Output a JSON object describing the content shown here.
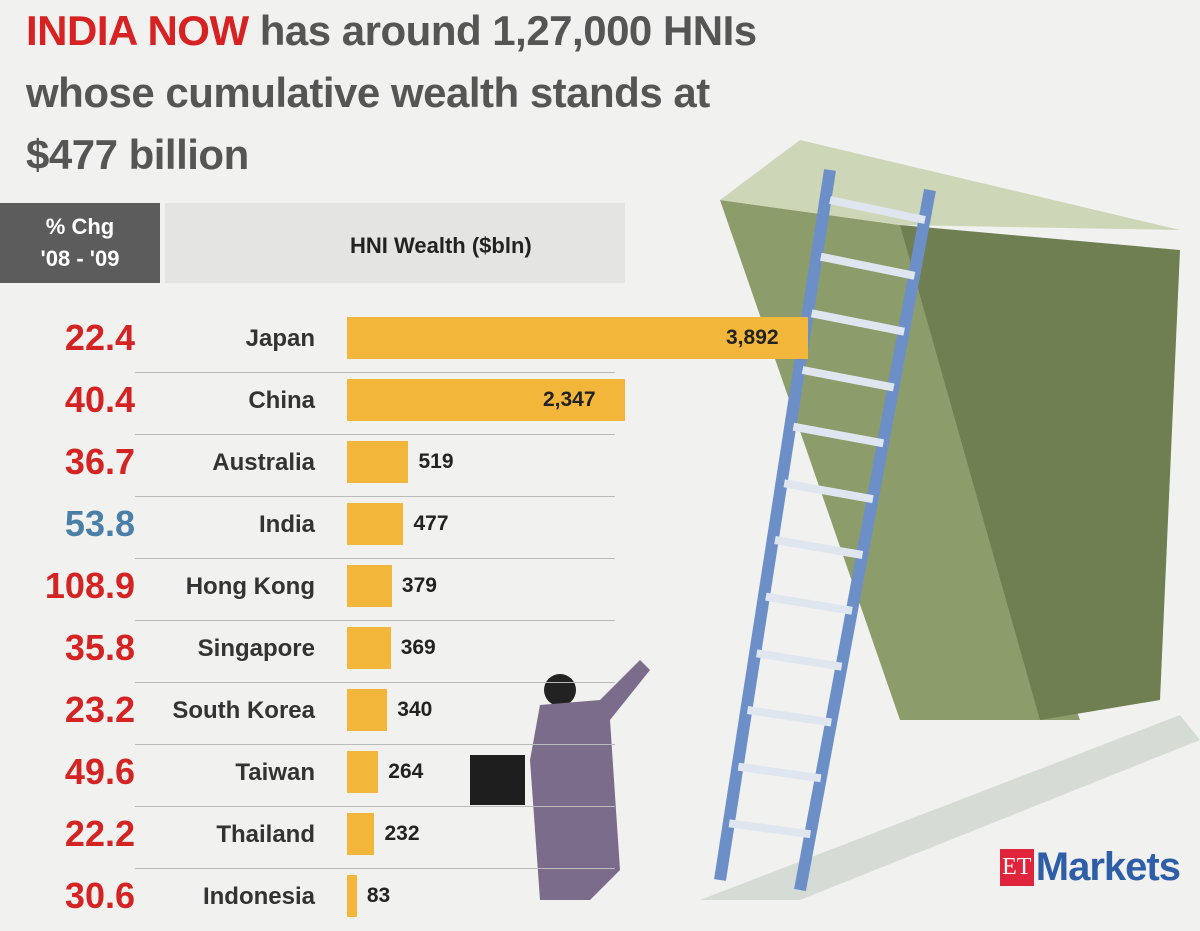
{
  "headline": {
    "highlight": "INDIA NOW",
    "rest": " has around 1,27,000 HNIs whose cumulative wealth stands at $477 billion"
  },
  "header": {
    "pct_label_1": "% Chg",
    "pct_label_2": "'08 - '09",
    "wealth_label": "HNI Wealth ($bln)"
  },
  "chart_data": {
    "type": "bar",
    "orientation": "horizontal",
    "title": "",
    "value_label": "HNI Wealth ($bln)",
    "change_label": "% Chg '08 - '09",
    "categories": [
      "Japan",
      "China",
      "Australia",
      "India",
      "Hong Kong",
      "Singapore",
      "South Korea",
      "Taiwan",
      "Thailand",
      "Indonesia"
    ],
    "values": [
      3892,
      2347,
      519,
      477,
      379,
      369,
      340,
      264,
      232,
      83
    ],
    "value_labels": [
      "3,892",
      "2,347",
      "519",
      "477",
      "379",
      "369",
      "340",
      "264",
      "232",
      "83"
    ],
    "pct_change": [
      "22.4",
      "40.4",
      "36.7",
      "53.8",
      "108.9",
      "35.8",
      "23.2",
      "49.6",
      "22.2",
      "30.6"
    ],
    "highlight": "India",
    "colors": {
      "bar": "#f2b73a",
      "pct": "#d42323",
      "highlight_pct": "#4a7fa8"
    }
  },
  "logo": {
    "et": "ET",
    "markets": "Markets"
  }
}
